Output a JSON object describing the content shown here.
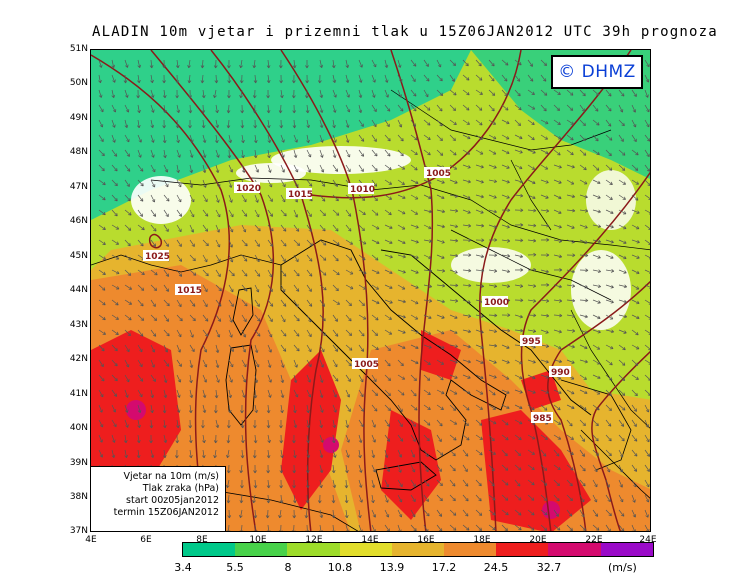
{
  "title": "ALADIN 10m vjetar i prizemni tlak u 15Z06JAN2012 UTC 39h prognoza",
  "logo": "© DHMZ",
  "lat_labels": [
    "51N",
    "50N",
    "49N",
    "48N",
    "47N",
    "46N",
    "45N",
    "44N",
    "43N",
    "42N",
    "41N",
    "40N",
    "39N",
    "38N",
    "37N"
  ],
  "lon_labels": [
    "4E",
    "6E",
    "8E",
    "10E",
    "12E",
    "14E",
    "16E",
    "18E",
    "20E",
    "22E",
    "24E"
  ],
  "info_lines": [
    "Vjetar na 10m (m/s)",
    "Tlak zraka (hPa)",
    "start 00z05jan2012",
    "termin 15Z06JAN2012"
  ],
  "legend": {
    "colors": [
      "#00c98a",
      "#48d24a",
      "#9ddc2a",
      "#e2de2c",
      "#e6b42e",
      "#ee8a2e",
      "#ee1e1e",
      "#d40a6e",
      "#9a0ac8"
    ],
    "labels": [
      "3.4",
      "5.5",
      "8",
      "10.8",
      "13.9",
      "17.2",
      "24.5",
      "32.7"
    ],
    "unit": "(m/s)"
  },
  "isobar_labels": [
    "1025",
    "1020",
    "1015",
    "1015",
    "1010",
    "1005",
    "1005",
    "1000",
    "995",
    "990",
    "985"
  ],
  "colors": {
    "land_line": "#000000",
    "isobar": "#8b1a1a"
  }
}
